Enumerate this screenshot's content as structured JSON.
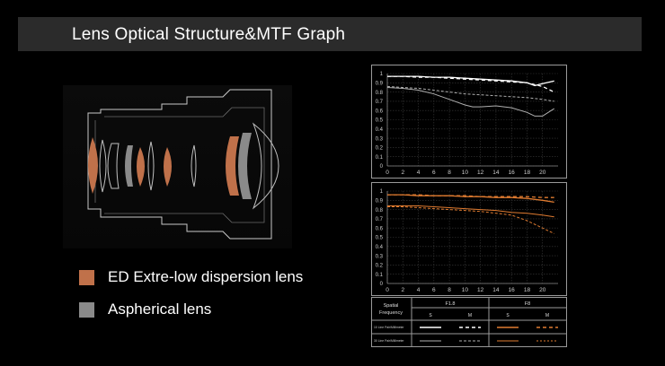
{
  "header": {
    "title": "Lens Optical Structure&MTF Graph"
  },
  "legend": [
    {
      "label": "ED Extre-low dispersion lens",
      "color": "#c0714a"
    },
    {
      "label": "Aspherical lens",
      "color": "#8a8a8a"
    }
  ],
  "colors": {
    "ed": "#c0714a",
    "aspherical": "#8a8a8a",
    "wide_open": "#ffffff",
    "stopped_down": "#e07b30"
  },
  "chart_data": [
    {
      "type": "line",
      "title": "",
      "xlim": [
        0,
        22
      ],
      "ylim": [
        0,
        1
      ],
      "xticks": [
        0,
        2,
        4,
        6,
        8,
        10,
        12,
        14,
        16,
        18,
        20
      ],
      "yticks": [
        0,
        0.1,
        0.2,
        0.3,
        0.4,
        0.5,
        0.6,
        0.7,
        0.8,
        0.9,
        1
      ],
      "ytick_labels": [
        "0",
        "0.1",
        "0.2",
        "0.3",
        "0.4",
        "0.5",
        "0.6",
        "0.7",
        "0.8",
        "0.9",
        "1"
      ],
      "grid": true,
      "series": [
        {
          "style": "solid",
          "color": "#ffffff",
          "x": [
            0,
            2,
            4,
            6,
            8,
            10,
            12,
            14,
            16,
            18,
            19,
            20,
            21.5
          ],
          "y": [
            0.97,
            0.97,
            0.97,
            0.96,
            0.96,
            0.95,
            0.94,
            0.93,
            0.92,
            0.9,
            0.87,
            0.89,
            0.92
          ]
        },
        {
          "style": "dashed",
          "color": "#ffffff",
          "x": [
            0,
            2,
            4,
            6,
            8,
            10,
            12,
            14,
            16,
            18,
            20,
            21.5
          ],
          "y": [
            0.97,
            0.97,
            0.96,
            0.96,
            0.95,
            0.94,
            0.93,
            0.92,
            0.91,
            0.9,
            0.86,
            0.8
          ]
        },
        {
          "style": "solid",
          "color": "#b0b0b0",
          "x": [
            0,
            2,
            4,
            6,
            8,
            10,
            11,
            12,
            14,
            16,
            18,
            19,
            20,
            21.5
          ],
          "y": [
            0.85,
            0.84,
            0.82,
            0.78,
            0.72,
            0.66,
            0.64,
            0.64,
            0.65,
            0.63,
            0.58,
            0.54,
            0.54,
            0.62
          ]
        },
        {
          "style": "dashed",
          "color": "#b0b0b0",
          "x": [
            0,
            2,
            4,
            6,
            8,
            10,
            12,
            14,
            16,
            18,
            20,
            21.5
          ],
          "y": [
            0.86,
            0.85,
            0.84,
            0.82,
            0.8,
            0.78,
            0.77,
            0.76,
            0.75,
            0.74,
            0.72,
            0.7
          ]
        }
      ]
    },
    {
      "type": "line",
      "title": "",
      "xlim": [
        0,
        22
      ],
      "ylim": [
        0,
        1
      ],
      "xticks": [
        0,
        2,
        4,
        6,
        8,
        10,
        12,
        14,
        16,
        18,
        20
      ],
      "yticks": [
        0,
        0.1,
        0.2,
        0.3,
        0.4,
        0.5,
        0.6,
        0.7,
        0.8,
        0.9,
        1
      ],
      "ytick_labels": [
        "0",
        "0.1",
        "0.2",
        "0.3",
        "0.4",
        "0.5",
        "0.6",
        "0.7",
        "0.8",
        "0.9",
        "1"
      ],
      "grid": true,
      "series": [
        {
          "style": "solid",
          "color": "#e07b30",
          "x": [
            0,
            2,
            4,
            6,
            8,
            10,
            12,
            14,
            16,
            18,
            20,
            21.5
          ],
          "y": [
            0.96,
            0.96,
            0.95,
            0.95,
            0.95,
            0.94,
            0.94,
            0.93,
            0.93,
            0.92,
            0.9,
            0.88
          ]
        },
        {
          "style": "dashed",
          "color": "#e07b30",
          "x": [
            0,
            2,
            4,
            6,
            8,
            10,
            12,
            14,
            16,
            18,
            20,
            21.5
          ],
          "y": [
            0.96,
            0.96,
            0.96,
            0.95,
            0.95,
            0.95,
            0.94,
            0.94,
            0.94,
            0.94,
            0.93,
            0.93
          ]
        },
        {
          "style": "solid",
          "color": "#e07b30",
          "x": [
            0,
            2,
            4,
            6,
            8,
            10,
            12,
            14,
            16,
            18,
            20,
            21.5
          ],
          "y": [
            0.84,
            0.84,
            0.84,
            0.83,
            0.82,
            0.81,
            0.8,
            0.79,
            0.77,
            0.76,
            0.74,
            0.72
          ]
        },
        {
          "style": "dashed",
          "color": "#e07b30",
          "x": [
            0,
            2,
            4,
            6,
            8,
            10,
            12,
            14,
            16,
            18,
            20,
            21.5
          ],
          "y": [
            0.83,
            0.83,
            0.82,
            0.81,
            0.8,
            0.79,
            0.78,
            0.76,
            0.74,
            0.68,
            0.6,
            0.54
          ]
        }
      ]
    }
  ],
  "table": {
    "header_label": "Spatial\nFrequency",
    "apertures": [
      "F1.8",
      "F8"
    ],
    "columns": [
      "S",
      "M",
      "S",
      "M"
    ],
    "rows": [
      "10 Line Pair/Millimeter",
      "30 Line Pair/Millimeter"
    ]
  }
}
